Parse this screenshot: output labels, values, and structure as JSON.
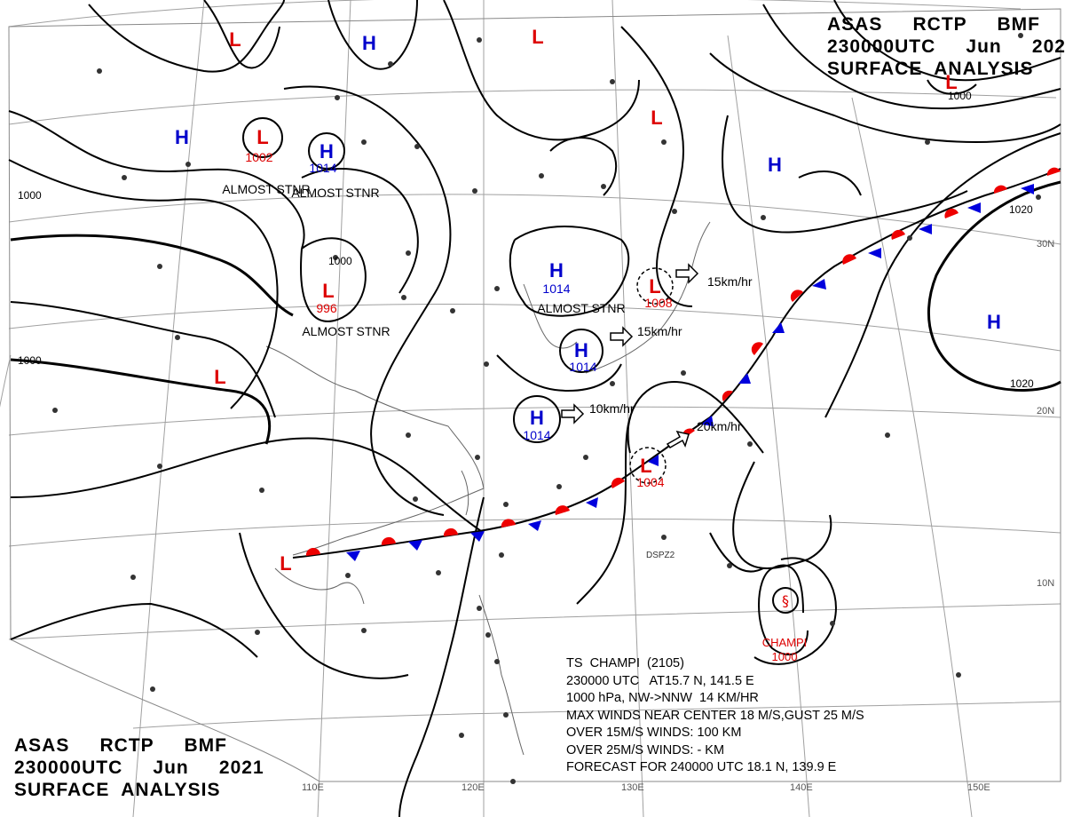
{
  "header": {
    "line1": "ASAS     RCTP     BMF",
    "line2": "230000UTC     Jun     2021",
    "line3": "SURFACE  ANALYSIS"
  },
  "latitude_labels": [
    "30N",
    "20N",
    "10N"
  ],
  "longitude_labels": [
    "110E",
    "120E",
    "130E",
    "140E",
    "150E"
  ],
  "pressure_systems": [
    {
      "type": "H",
      "label": "",
      "color": "#0000cc"
    },
    {
      "type": "H",
      "label": "",
      "color": "#0000cc"
    },
    {
      "type": "H",
      "label": "1014",
      "color": "#0000cc"
    },
    {
      "type": "H",
      "label": "",
      "color": "#0000cc"
    },
    {
      "type": "H",
      "label": "1014",
      "color": "#0000cc"
    },
    {
      "type": "H",
      "label": "1014",
      "color": "#0000cc"
    },
    {
      "type": "H",
      "label": "1014",
      "color": "#0000cc"
    },
    {
      "type": "H",
      "label": "",
      "color": "#0000cc"
    },
    {
      "type": "L",
      "label": "",
      "color": "#dd0000"
    },
    {
      "type": "L",
      "label": "",
      "color": "#dd0000"
    },
    {
      "type": "L",
      "label": "1002",
      "color": "#dd0000"
    },
    {
      "type": "L",
      "label": "996",
      "color": "#dd0000"
    },
    {
      "type": "L",
      "label": "",
      "color": "#dd0000"
    },
    {
      "type": "L",
      "label": "",
      "color": "#dd0000"
    },
    {
      "type": "L",
      "label": "1008",
      "color": "#dd0000"
    },
    {
      "type": "L",
      "label": "1004",
      "color": "#dd0000"
    },
    {
      "type": "L",
      "label": "",
      "color": "#dd0000"
    },
    {
      "type": "L",
      "label": "1000",
      "color": "#dd0000"
    }
  ],
  "system_notes": [
    "ALMOST STNR",
    "ALMOST STNR",
    "ALMOST STNR",
    "ALMOST STNR"
  ],
  "motion_labels": [
    "15km/hr",
    "15km/hr",
    "10km/hr",
    "20km/hr"
  ],
  "isobar_labels": [
    "1000",
    "1000",
    "1000",
    "1000",
    "1020",
    "1020"
  ],
  "station_codes": [
    "DSPZ2"
  ],
  "storm": {
    "name": "CHAMPI",
    "pressure": "1000"
  },
  "storm_bulletin": [
    "TS  CHAMPI  (2105)",
    "230000 UTC   AT15.7 N, 141.5 E",
    "1000 hPa, NW->NNW  14 KM/HR",
    "MAX WINDS NEAR CENTER 18 M/S,GUST 25 M/S",
    "OVER 15M/S WINDS: 100 KM",
    "OVER 25M/S WINDS: - KM",
    "FORECAST FOR 240000 UTC 18.1 N, 139.9 E"
  ],
  "colors": {
    "high": "#0000cc",
    "low": "#dd0000",
    "warm_front": "#ee0000",
    "cold_front": "#0000dd",
    "isobar": "#000000",
    "grid": "#999999"
  }
}
